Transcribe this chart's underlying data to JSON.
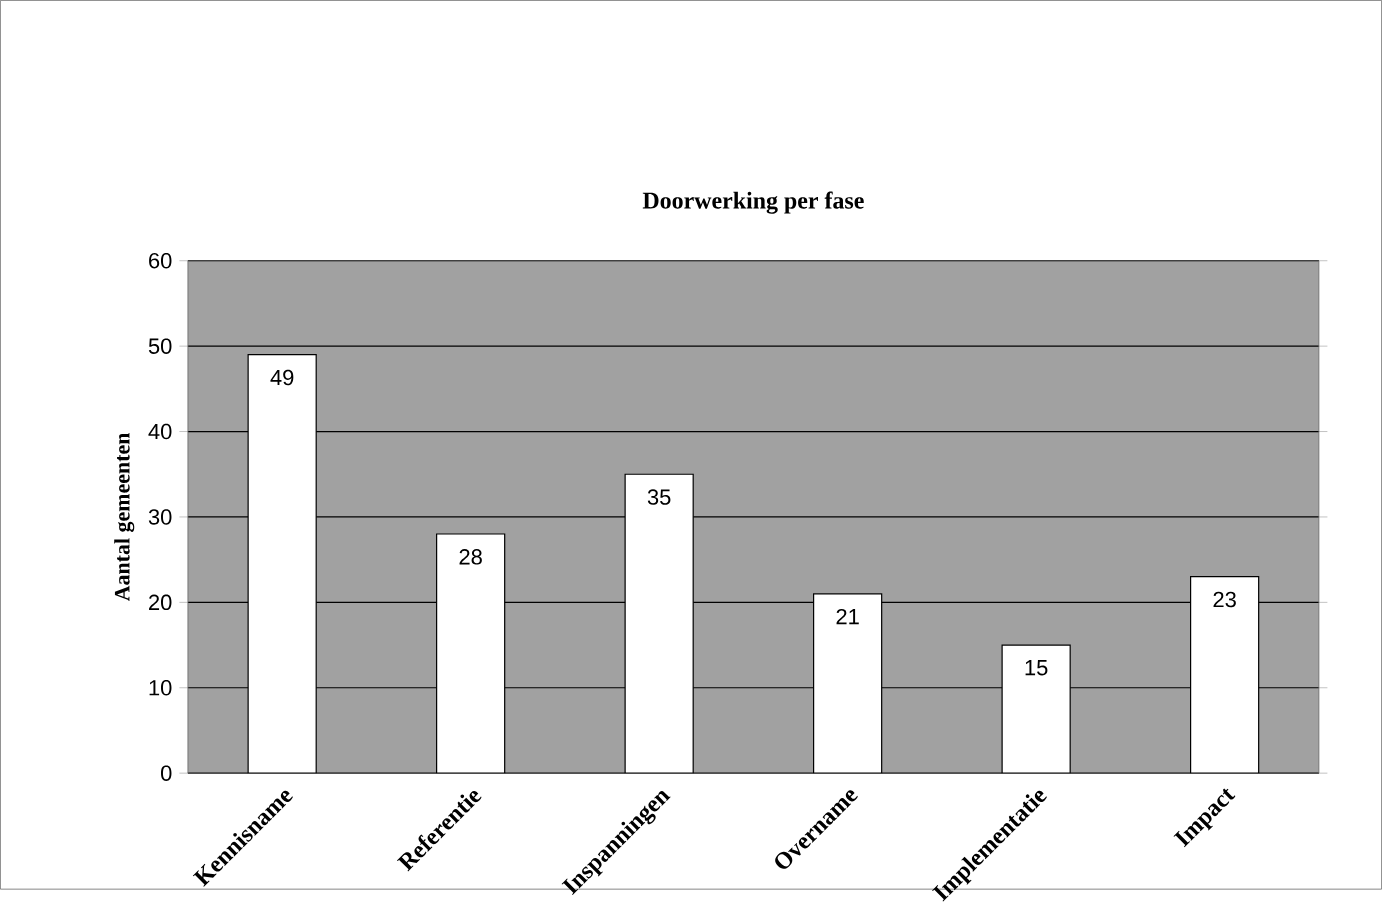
{
  "chart_data": {
    "type": "bar",
    "title": "Doorwerking per fase",
    "ylabel": "Aantal gemeenten",
    "categories": [
      "Kennisname",
      "Referentie",
      "Inspanningen",
      "Overname",
      "Implementatie",
      "Impact"
    ],
    "values": [
      49,
      28,
      35,
      21,
      15,
      23
    ],
    "color": "#ffffff",
    "ylim": [
      0,
      60
    ],
    "yticks": [
      0,
      10,
      20,
      30,
      40,
      50,
      60
    ],
    "grid": "y",
    "data_labels": true
  }
}
